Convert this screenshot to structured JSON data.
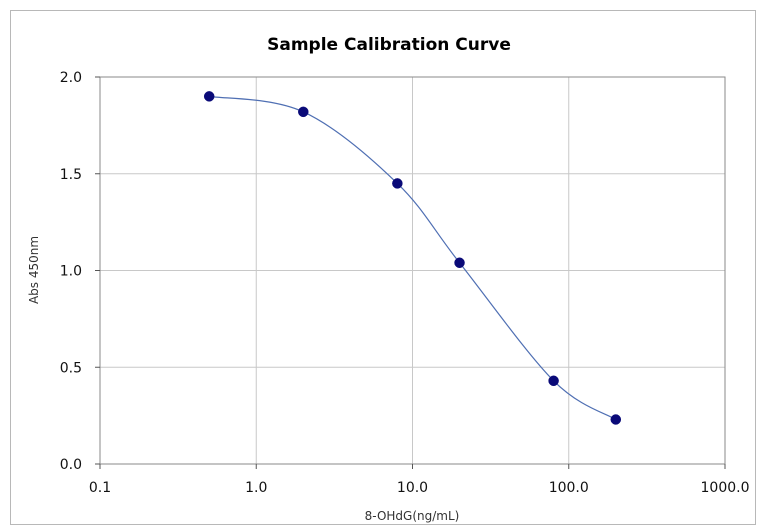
{
  "chart_data": {
    "type": "scatter",
    "title": "Sample Calibration Curve",
    "xlabel": "8-OHdG(ng/mL)",
    "ylabel": "Abs 450nm",
    "x_scale": "log",
    "xlim": [
      0.1,
      1000
    ],
    "ylim": [
      0,
      2
    ],
    "x_ticks": [
      0.1,
      1,
      10,
      100,
      1000
    ],
    "x_tick_labels": [
      "0.1",
      "1.0",
      "10.0",
      "100.0",
      "1000.0"
    ],
    "y_ticks": [
      0,
      0.5,
      1,
      1.5,
      2
    ],
    "y_tick_labels": [
      "0.0",
      "0.5",
      "1.0",
      "1.5",
      "2.0"
    ],
    "grid": true,
    "legend": "none",
    "series": [
      {
        "x": [
          0.5,
          2,
          8,
          20,
          80,
          200
        ],
        "y": [
          1.9,
          1.82,
          1.45,
          1.04,
          0.43,
          0.23
        ],
        "marker_color": "#0a0a78",
        "line_color": "#4f6fb3",
        "fit": "smooth curve"
      }
    ],
    "colors": {
      "background": "#ffffff",
      "frame": "#b8b8b8",
      "plot_border": "#8a8a8a",
      "grid": "#c8c8c8"
    }
  }
}
